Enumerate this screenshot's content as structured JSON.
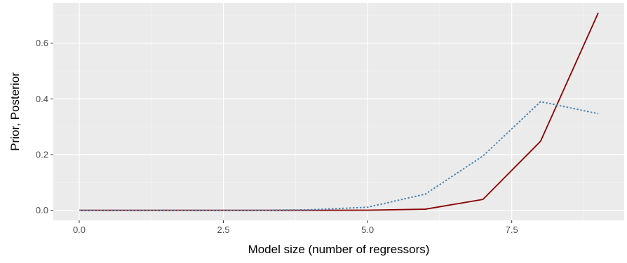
{
  "chart_data": {
    "type": "line",
    "title": "",
    "xlabel": "Model size (number of regressors)",
    "ylabel": "Prior, Posterior",
    "xlim": [
      -0.45,
      9.45
    ],
    "ylim": [
      -0.036,
      0.745
    ],
    "x_ticks": [
      0,
      2.5,
      5,
      7.5
    ],
    "x_tick_labels": [
      "0.0",
      "2.5",
      "5.0",
      "7.5"
    ],
    "x_minor": [
      1.25,
      3.75,
      6.25,
      8.75
    ],
    "y_ticks": [
      0,
      0.2,
      0.4,
      0.6
    ],
    "y_tick_labels": [
      "0.0",
      "0.2",
      "0.4",
      "0.6"
    ],
    "y_minor": [
      0.1,
      0.3,
      0.5,
      0.7
    ],
    "grid": true,
    "legend": "none",
    "series": [
      {
        "color": "#8b0000",
        "linestyle": "solid",
        "x": [
          0,
          1,
          2,
          3,
          4,
          5,
          6,
          7,
          8,
          9
        ],
        "values": [
          0,
          0,
          0,
          0,
          0,
          0.0005,
          0.004,
          0.039,
          0.248,
          0.709
        ]
      },
      {
        "color": "#4682b4",
        "linestyle": "dotted",
        "x": [
          0,
          1,
          2,
          3,
          4,
          5,
          6,
          7,
          8,
          9
        ],
        "values": [
          0,
          0,
          0,
          0,
          0.002,
          0.011,
          0.058,
          0.195,
          0.39,
          0.347
        ]
      }
    ]
  }
}
